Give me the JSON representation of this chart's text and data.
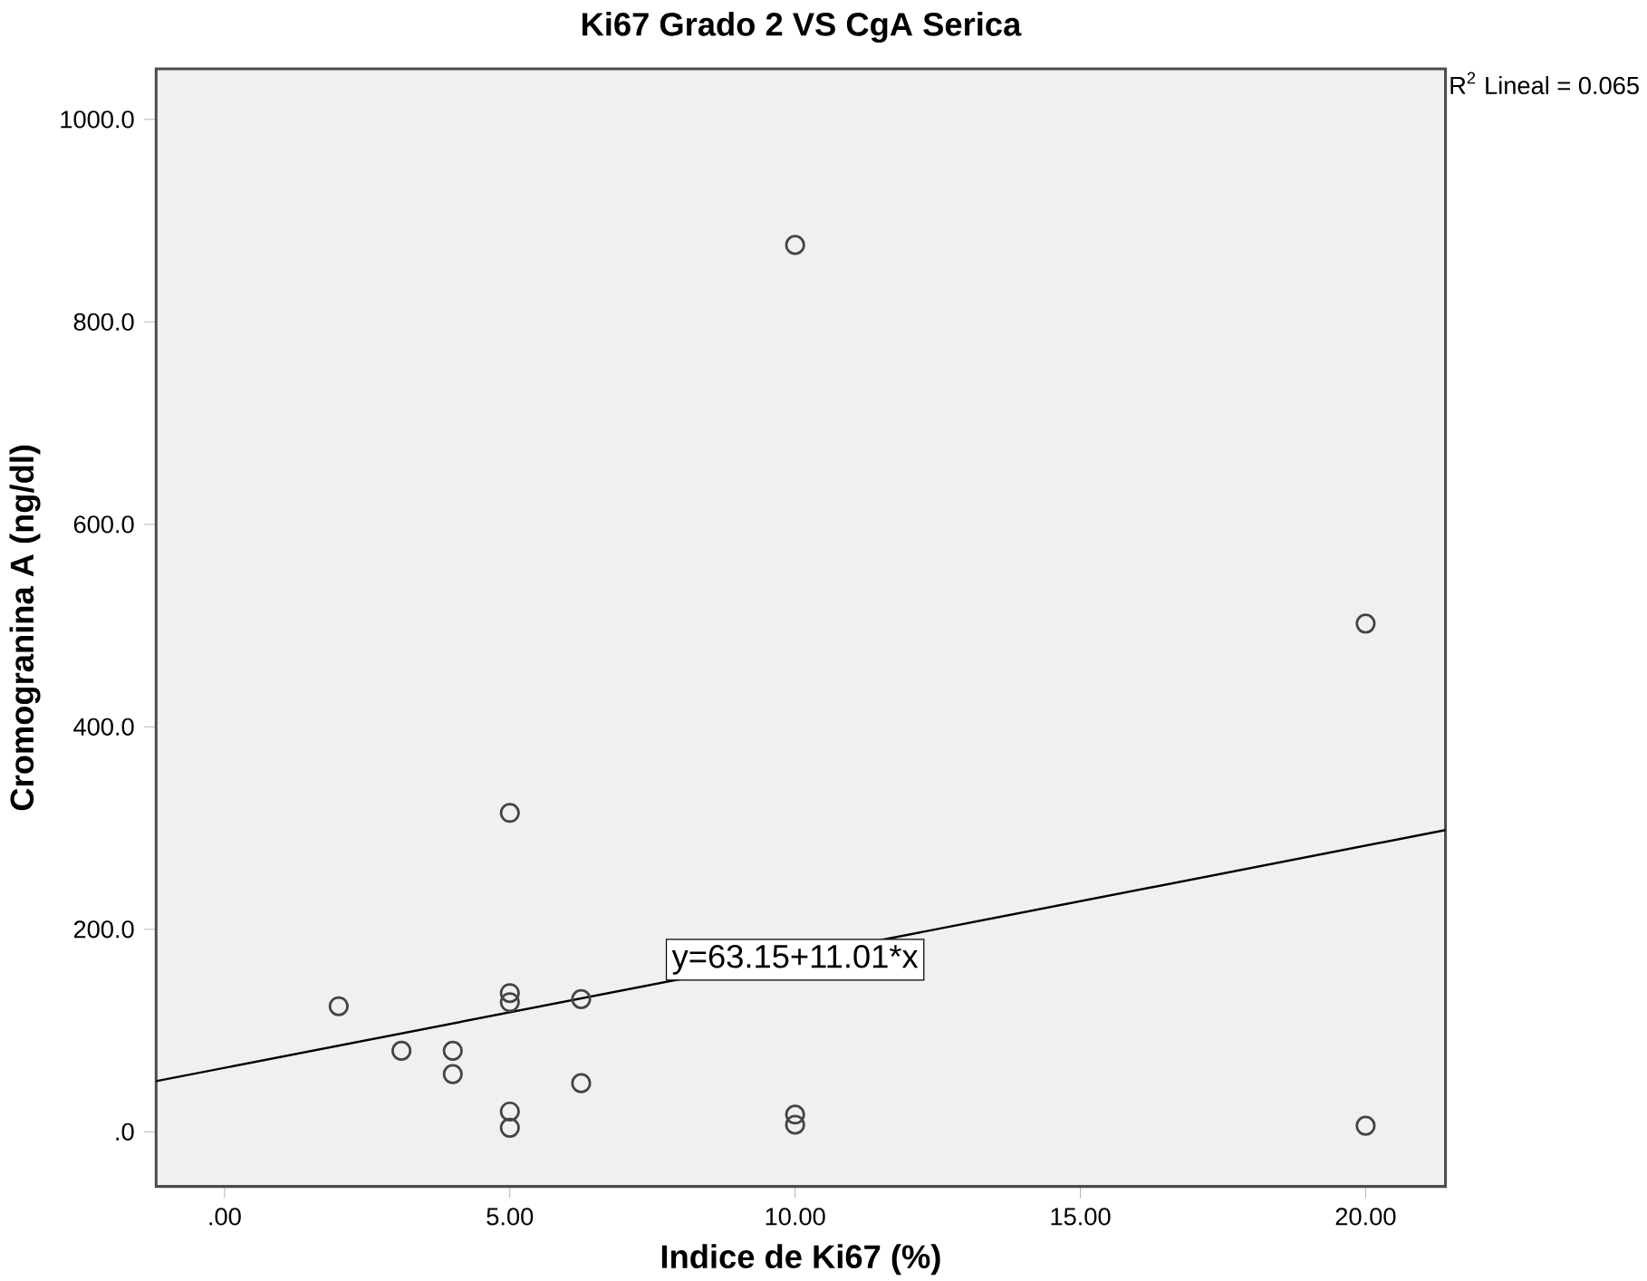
{
  "chart_data": {
    "type": "scatter",
    "title": "Ki67 Grado 2 VS CgA Serica",
    "xlabel": "Indice de Ki67 (%)",
    "ylabel": "Cromogranina A (ng/dl)",
    "xlim": [
      -1.2,
      21.4
    ],
    "ylim": [
      -54,
      1050
    ],
    "xticks": [
      {
        "value": 0,
        "label": ".00"
      },
      {
        "value": 5,
        "label": "5.00"
      },
      {
        "value": 10,
        "label": "10.00"
      },
      {
        "value": 15,
        "label": "15.00"
      },
      {
        "value": 20,
        "label": "20.00"
      }
    ],
    "yticks": [
      {
        "value": 0,
        "label": ".0"
      },
      {
        "value": 200,
        "label": "200.0"
      },
      {
        "value": 400,
        "label": "400.0"
      },
      {
        "value": 600,
        "label": "600.0"
      },
      {
        "value": 800,
        "label": "800.0"
      },
      {
        "value": 1000,
        "label": "1000.0"
      }
    ],
    "grid": false,
    "series": [
      {
        "marker": "circle",
        "color": "#444444",
        "x": [
          2,
          3.1,
          4,
          4,
          5,
          5,
          5,
          5,
          5,
          6.25,
          6.25,
          10,
          10,
          10,
          20,
          20
        ],
        "values": [
          124,
          80,
          80,
          57,
          315,
          137,
          128,
          20,
          4,
          131,
          48,
          876,
          17,
          7,
          502,
          6
        ]
      },
      {
        "type": "line",
        "color": "#000000",
        "x": [
          -1.2,
          21.4
        ],
        "values": [
          50,
          298
        ]
      }
    ],
    "annotations": [
      {
        "text": "y=63.15+11.01*x",
        "x": 10,
        "y": 170
      },
      "R$^{2}$ Lineal = 0.065"
    ]
  }
}
